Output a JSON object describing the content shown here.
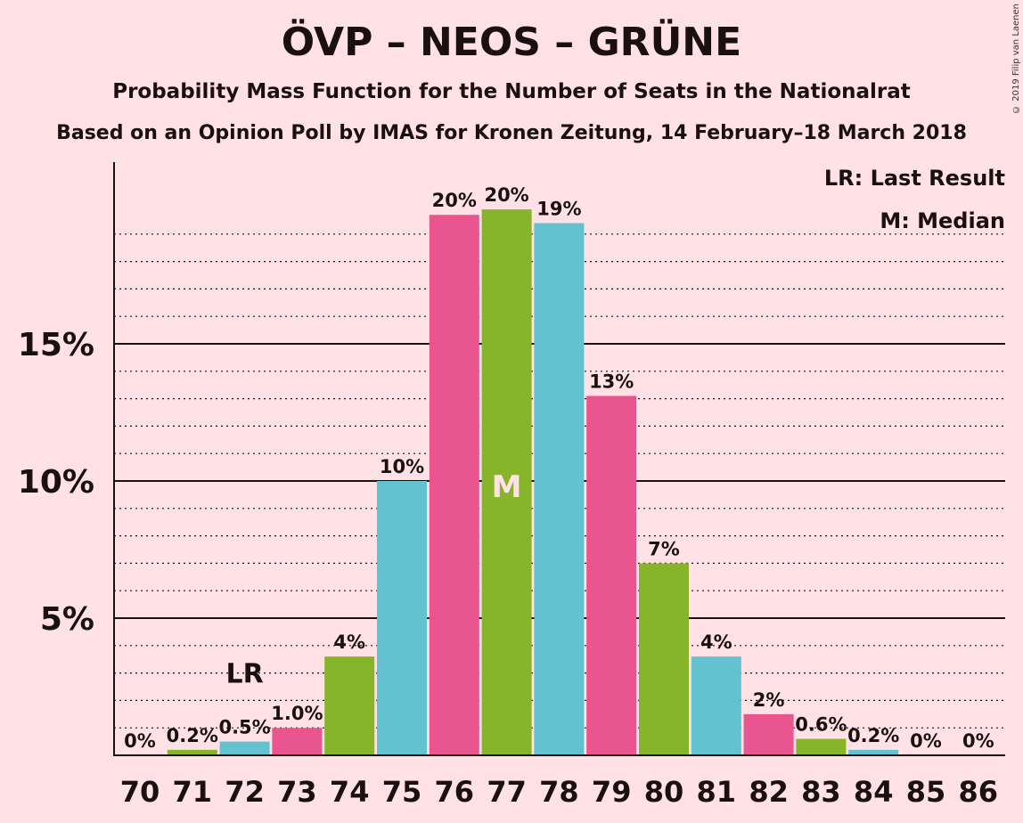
{
  "title": "ÖVP – NEOS – GRÜNE",
  "subtitle": "Probability Mass Function for the Number of Seats in the Nationalrat",
  "subtitle2": "Based on an Opinion Poll by IMAS for Kronen Zeitung, 14 February–18 March 2018",
  "copyright": "© 2019 Filip van Laenen",
  "legend": {
    "last_result": "LR: Last Result",
    "median": "M: Median"
  },
  "markers": {
    "last_result": "LR",
    "median": "M"
  },
  "colors": {
    "background": "#ffe1e6",
    "pink": "#e8558f",
    "green": "#86b52a",
    "cyan": "#63c2d0",
    "text": "#1a1010"
  },
  "chart_data": {
    "type": "bar",
    "title": "ÖVP – NEOS – GRÜNE",
    "xlabel": "",
    "ylabel": "",
    "ylim": [
      0,
      21.5
    ],
    "yticks": [
      "5%",
      "10%",
      "15%"
    ],
    "ytick_values": [
      5,
      10,
      15
    ],
    "grid": "dotted minor lines every 1%, solid major lines every 5%",
    "legend_placement": "top-right",
    "categories": [
      "70",
      "71",
      "72",
      "73",
      "74",
      "75",
      "76",
      "77",
      "78",
      "79",
      "80",
      "81",
      "82",
      "83",
      "84",
      "85",
      "86"
    ],
    "values": [
      0,
      0.2,
      0.5,
      1.0,
      3.6,
      10.0,
      19.7,
      19.9,
      19.4,
      13.1,
      7.0,
      3.6,
      1.5,
      0.6,
      0.2,
      0,
      0
    ],
    "data_labels": [
      "0%",
      "0.2%",
      "0.5%",
      "1.0%",
      "4%",
      "10%",
      "20%",
      "20%",
      "19%",
      "13%",
      "7%",
      "4%",
      "2%",
      "0.6%",
      "0.2%",
      "0%",
      "0%"
    ],
    "bar_colors": [
      "green",
      "green",
      "cyan",
      "pink",
      "green",
      "cyan",
      "pink",
      "green",
      "cyan",
      "pink",
      "green",
      "cyan",
      "pink",
      "green",
      "cyan",
      "pink",
      "green"
    ],
    "last_result_category": "72",
    "median_category": "77"
  }
}
